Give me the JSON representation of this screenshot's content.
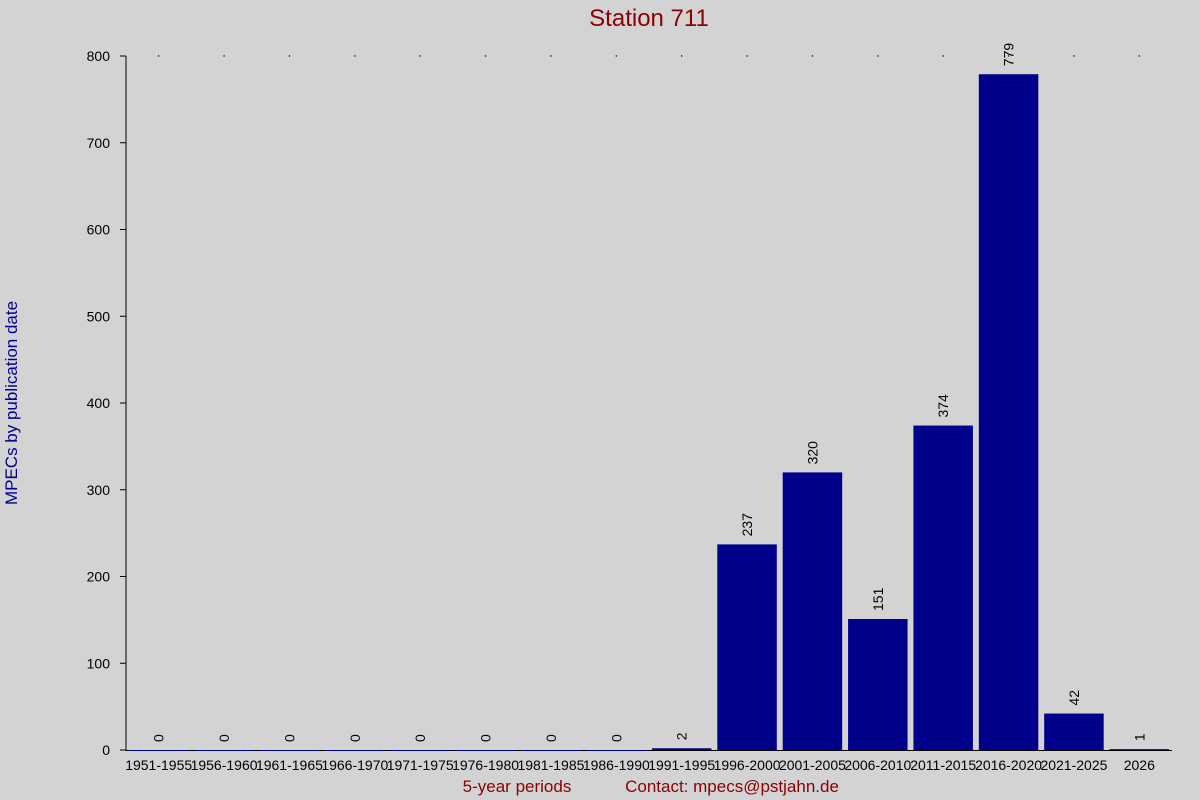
{
  "chart_data": {
    "type": "bar",
    "title": "Station 711",
    "x_label": "5-year periods",
    "annotation": "Contact: mpecs@pstjahn.de",
    "y_label": "MPECs by publication date",
    "categories": [
      "1951-1955",
      "1956-1960",
      "1961-1965",
      "1966-1970",
      "1971-1975",
      "1976-1980",
      "1981-1985",
      "1986-1990",
      "1991-1995",
      "1996-2000",
      "2001-2005",
      "2006-2010",
      "2011-2015",
      "2016-2020",
      "2021-2025",
      "2026"
    ],
    "values": [
      0,
      0,
      0,
      0,
      0,
      0,
      0,
      0,
      2,
      237,
      320,
      151,
      374,
      779,
      42,
      1
    ],
    "color": "#00008b",
    "ylim": [
      0,
      800
    ],
    "yticks": [
      0,
      100,
      200,
      300,
      400,
      500,
      600,
      700,
      800
    ],
    "grid": false
  }
}
